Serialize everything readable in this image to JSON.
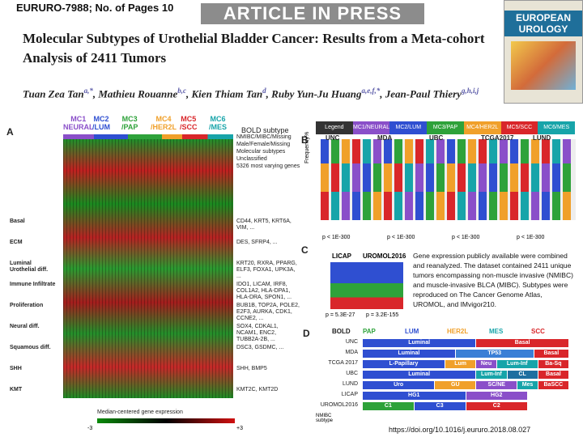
{
  "header": {
    "journal_id": "EURURO-7988; No. of Pages 10",
    "press": "ARTICLE IN PRESS"
  },
  "title": "Molecular Subtypes of Urothelial Bladder Cancer: Results from a Meta-cohort Analysis of 2411 Tumors",
  "authors": [
    {
      "name": "Tuan Zea Tan",
      "sup": "a,*"
    },
    {
      "name": "Mathieu Rouanne",
      "sup": "b,c"
    },
    {
      "name": "Kien Thiam Tan",
      "sup": "d"
    },
    {
      "name": "Ruby Yun-Ju Huang",
      "sup": "a,e,f,*"
    },
    {
      "name": "Jean-Paul Thiery",
      "sup": "g,h,i,j"
    }
  ],
  "cover": {
    "name": "EUROPEAN UROLOGY"
  },
  "panelA": {
    "label": "A",
    "subtypes": [
      {
        "name": "MC1",
        "sub": "NEURAL",
        "color": "#8a4fc9"
      },
      {
        "name": "MC2",
        "sub": "/LUM",
        "color": "#2f4fd1"
      },
      {
        "name": "MC3",
        "sub": "/PAP",
        "color": "#2ea23a"
      },
      {
        "name": "MC4",
        "sub": "/HER2L",
        "color": "#f0a02a"
      },
      {
        "name": "MC5",
        "sub": "/SCC",
        "color": "#d9262a"
      },
      {
        "name": "MC6",
        "sub": "/MES",
        "color": "#17a4a9"
      }
    ],
    "bold_subtype": "BOLD subtype",
    "annot": [
      "NMIBC/MIBC/Missing",
      "Male/Female/Missing",
      "Molecular subtypes",
      "Unclassified",
      "5326 most varying genes"
    ],
    "rows": [
      {
        "label": "Basal",
        "genes": "CD44, KRT5, KRT6A, VIM, ..."
      },
      {
        "label": "ECM",
        "genes": "DES, SFRP4, ..."
      },
      {
        "label": "Luminal Urothelial diff.",
        "genes": "KRT20, RXRA, PPARG, ELF3, FOXA1, UPK3A, ..."
      },
      {
        "label": "Immune Infiltrate",
        "genes": "IDO1, LICAM, IRF8, COL1A2, HLA-DPA1, HLA-DRA, SPON1, ..."
      },
      {
        "label": "Proliferation",
        "genes": "BUB1B, TOP2A, POLE2, E2F3, AURKA, CDK1, CCNE2, ..."
      },
      {
        "label": "Neural diff.",
        "genes": "SOX4, CDKAL1, NCAM1, ENC2, TUBB2A-2B, ..."
      },
      {
        "label": "Squamous diff.",
        "genes": "DSC3, GSDMC, ..."
      },
      {
        "label": "SHH",
        "genes": "SHH, BMP5"
      },
      {
        "label": "KMT",
        "genes": "KMT2C, KMT2D"
      }
    ],
    "scale_label": "Median-centered gene expression",
    "scale_min": "-3",
    "scale_max": "+3"
  },
  "panelB": {
    "label": "B",
    "legend": [
      {
        "name": "MC1/NEURAL",
        "color": "#8a4fc9"
      },
      {
        "name": "MC2/LUM",
        "color": "#2f4fd1"
      },
      {
        "name": "MC3/PAP",
        "color": "#2ea23a"
      },
      {
        "name": "MC4/HER2L",
        "color": "#f0a02a"
      },
      {
        "name": "MC5/SCC",
        "color": "#d9262a"
      },
      {
        "name": "MC6/MES",
        "color": "#17a4a9"
      }
    ],
    "legend_title": "Legend",
    "cohorts": [
      "UNC",
      "MDA",
      "UBC",
      "TCGA2017",
      "LUND"
    ],
    "ylabel": "Frequency%",
    "pvals": [
      "p < 1E-300",
      "p < 1E-300",
      "p < 1E-300",
      "p < 1E-300"
    ]
  },
  "panelC": {
    "label": "C",
    "cohorts": [
      "LICAP",
      "UROMOL2016"
    ],
    "pvals": [
      "p = 5.3E-27",
      "p = 3.2E-155"
    ]
  },
  "caption": "Gene expression publicly available were combined and reanalyzed. The dataset contained 2411 unique tumors encompassing non-muscle invasive (NMIBC) and muscle-invasive BLCA (MIBC). Subtypes were reproduced on The Cancer Genome Atlas, UROMOL, and IMvigor210.",
  "panelD": {
    "label": "D",
    "header": [
      {
        "name": "BOLD",
        "color": "#222"
      },
      {
        "name": "PAP",
        "color": "#2ea23a"
      },
      {
        "name": "LUM",
        "color": "#2f4fd1"
      },
      {
        "name": "HER2L",
        "color": "#f0a02a"
      },
      {
        "name": "MES",
        "color": "#17a4a9"
      },
      {
        "name": "SCC",
        "color": "#d9262a"
      }
    ],
    "rows": [
      {
        "label": "UNC",
        "segs": [
          {
            "t": "Luminal",
            "c": "#2f4fd1",
            "w": 55
          },
          {
            "t": "Basal",
            "c": "#d9262a",
            "w": 45
          }
        ]
      },
      {
        "label": "MDA",
        "segs": [
          {
            "t": "Luminal",
            "c": "#2f4fd1",
            "w": 45
          },
          {
            "t": "TP53",
            "c": "#3a7fd6",
            "w": 38
          },
          {
            "t": "Basal",
            "c": "#d9262a",
            "w": 17
          }
        ]
      },
      {
        "label": "TCGA 2017",
        "segs": [
          {
            "t": "L-Papillary",
            "c": "#2f4fd1",
            "w": 40
          },
          {
            "t": "Lum",
            "c": "#f0a02a",
            "w": 15
          },
          {
            "t": "Neu",
            "c": "#8a4fc9",
            "w": 10
          },
          {
            "t": "Lum-Inf",
            "c": "#17a4a9",
            "w": 20
          },
          {
            "t": "Ba-Sq",
            "c": "#d9262a",
            "w": 15
          }
        ]
      },
      {
        "label": "UBC",
        "segs": [
          {
            "t": "Luminal",
            "c": "#2f4fd1",
            "w": 55
          },
          {
            "t": "Lum-Inf",
            "c": "#17a4a9",
            "w": 15
          },
          {
            "t": "CL",
            "c": "#1f6fa0",
            "w": 15
          },
          {
            "t": "Basal",
            "c": "#d9262a",
            "w": 15
          }
        ]
      },
      {
        "label": "LUND",
        "segs": [
          {
            "t": "Uro",
            "c": "#2f4fd1",
            "w": 35
          },
          {
            "t": "GU",
            "c": "#f0a02a",
            "w": 20
          },
          {
            "t": "SC/NE",
            "c": "#8a4fc9",
            "w": 20
          },
          {
            "t": "Mes",
            "c": "#17a4a9",
            "w": 10
          },
          {
            "t": "BaSCC",
            "c": "#d9262a",
            "w": 15
          }
        ]
      },
      {
        "label": "LICAP",
        "segs": [
          {
            "t": "HG1",
            "c": "#2f4fd1",
            "w": 50
          },
          {
            "t": "HG2",
            "c": "#8a4fc9",
            "w": 30
          }
        ]
      },
      {
        "label": "UROMOL2016",
        "segs": [
          {
            "t": "C1",
            "c": "#2ea23a",
            "w": 25
          },
          {
            "t": "C3",
            "c": "#2f4fd1",
            "w": 25
          },
          {
            "t": "C2",
            "c": "#d9262a",
            "w": 30
          }
        ]
      }
    ],
    "nmibc_label": "NMIBC subtype"
  },
  "doi": "https://doi.org/10.1016/j.eururo.2018.08.027"
}
